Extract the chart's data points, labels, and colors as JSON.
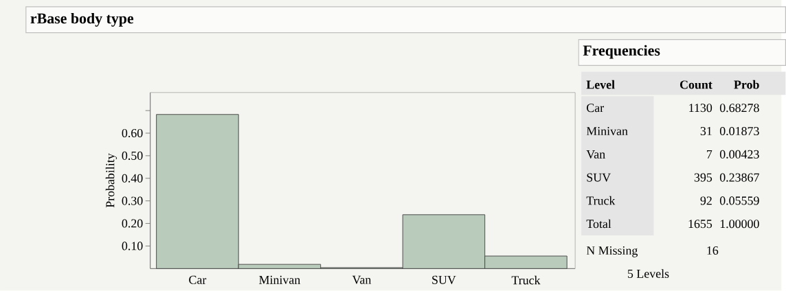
{
  "chart_data": [
    {
      "type": "bar",
      "title": "rBase body type",
      "ylabel": "Probability",
      "categories": [
        "Car",
        "Minivan",
        "Van",
        "SUV",
        "Truck"
      ],
      "values": [
        0.68278,
        0.01873,
        0.00423,
        0.23867,
        0.05559
      ],
      "color": "#b9cbbb",
      "ylim": [
        0,
        0.78
      ],
      "yticks": [
        {
          "value": 0.1,
          "label": "0.10"
        },
        {
          "value": 0.2,
          "label": "0.20"
        },
        {
          "value": 0.3,
          "label": "0.30"
        },
        {
          "value": 0.4,
          "label": "0.40"
        },
        {
          "value": 0.5,
          "label": "0.50"
        },
        {
          "value": 0.6,
          "label": "0.60"
        },
        {
          "value": 0.7,
          "label": null
        }
      ],
      "grid": false
    },
    {
      "type": "other",
      "title": "Frequencies",
      "annotations": [
        "Level",
        "Count",
        "Prob",
        "Car",
        "1130",
        "0.68278",
        "Minivan",
        "31",
        "0.01873",
        "Van",
        "7",
        "0.00423",
        "SUV",
        "395",
        "0.23867",
        "Truck",
        "92",
        "0.05559",
        "Total",
        "1655",
        "1.00000",
        "N Missing",
        "16",
        "5  Levels"
      ]
    }
  ]
}
